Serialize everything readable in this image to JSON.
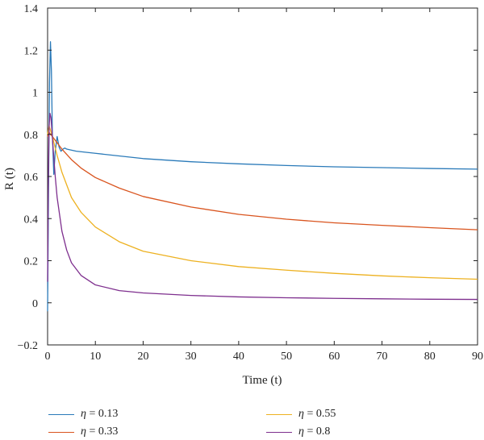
{
  "chart_data": {
    "type": "line",
    "title": "",
    "xlabel": "Time (t)",
    "ylabel": "R (t)",
    "xlim": [
      0,
      90
    ],
    "ylim": [
      -0.2,
      1.4
    ],
    "xticks": [
      0,
      10,
      20,
      30,
      40,
      50,
      60,
      70,
      80,
      90
    ],
    "yticks": [
      -0.2,
      0,
      0.2,
      0.4,
      0.6,
      0.8,
      1,
      1.2,
      1.4
    ],
    "ytick_labels": [
      "−0.2",
      "0",
      "0.2",
      "0.4",
      "0.6",
      "0.8",
      "1",
      "1.2",
      "1.4"
    ],
    "grid": false,
    "legend_position": "bottom",
    "series": [
      {
        "name": "η = 0.13",
        "legend_symbol": "η",
        "legend_value": " = 0.13",
        "color": "#2a7ab9",
        "x": [
          0,
          0.2,
          0.4,
          0.6,
          0.8,
          1.0,
          1.3,
          1.6,
          2.0,
          2.4,
          2.8,
          3.2,
          3.6,
          4,
          6,
          10,
          20,
          30,
          40,
          50,
          60,
          70,
          80,
          90
        ],
        "y": [
          -0.04,
          0.55,
          1.05,
          1.24,
          1.1,
          0.8,
          0.61,
          0.72,
          0.79,
          0.74,
          0.72,
          0.73,
          0.735,
          0.73,
          0.72,
          0.71,
          0.685,
          0.67,
          0.66,
          0.652,
          0.646,
          0.642,
          0.638,
          0.635
        ]
      },
      {
        "name": "η = 0.33",
        "legend_symbol": "η",
        "legend_value": " = 0.33",
        "color": "#d9541e",
        "x": [
          0,
          0.3,
          0.6,
          1.0,
          2,
          3,
          5,
          7,
          10,
          15,
          20,
          30,
          40,
          50,
          60,
          70,
          80,
          90
        ],
        "y": [
          0.79,
          0.81,
          0.8,
          0.79,
          0.76,
          0.73,
          0.68,
          0.64,
          0.595,
          0.545,
          0.505,
          0.455,
          0.42,
          0.397,
          0.38,
          0.368,
          0.357,
          0.347
        ]
      },
      {
        "name": "η = 0.55",
        "legend_symbol": "η",
        "legend_value": " = 0.55",
        "color": "#edb120",
        "x": [
          0,
          0.3,
          0.6,
          1.0,
          2,
          3,
          5,
          7,
          10,
          15,
          20,
          30,
          40,
          50,
          60,
          70,
          80,
          90
        ],
        "y": [
          0.8,
          0.84,
          0.82,
          0.79,
          0.7,
          0.62,
          0.5,
          0.43,
          0.36,
          0.29,
          0.245,
          0.2,
          0.172,
          0.155,
          0.14,
          0.128,
          0.119,
          0.112
        ]
      },
      {
        "name": "η = 0.8",
        "legend_symbol": "η",
        "legend_value": " = 0.8",
        "color": "#7e2f8e",
        "x": [
          0,
          0.15,
          0.3,
          0.5,
          0.7,
          0.9,
          1.2,
          1.6,
          2,
          3,
          4,
          5,
          7,
          10,
          15,
          20,
          30,
          40,
          50,
          60,
          70,
          80,
          90
        ],
        "y": [
          0.1,
          0.55,
          0.83,
          0.9,
          0.88,
          0.82,
          0.72,
          0.6,
          0.5,
          0.34,
          0.25,
          0.19,
          0.13,
          0.085,
          0.058,
          0.047,
          0.035,
          0.028,
          0.024,
          0.021,
          0.019,
          0.017,
          0.016
        ]
      }
    ]
  }
}
